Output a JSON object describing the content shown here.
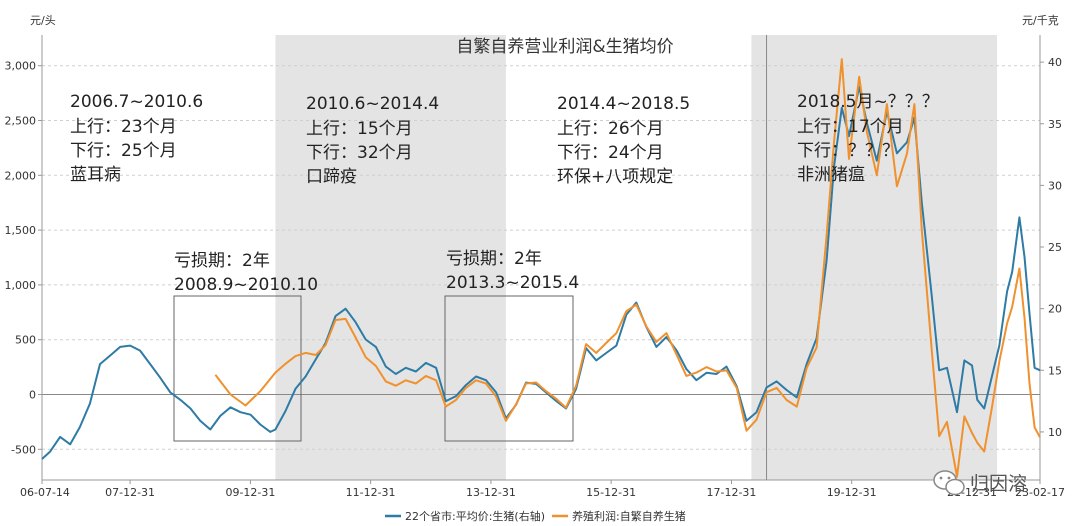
{
  "chart_data": {
    "type": "line",
    "title": "自繁自养营业利润&生猪均价",
    "y_left_unit": "元/头",
    "y_right_unit": "元/千克",
    "y_left_ticks": [
      "-500",
      "0",
      "500",
      "1,000",
      "1,500",
      "2,000",
      "2,500",
      "3,000"
    ],
    "y_left_lim": [
      -780,
      3280
    ],
    "y_right_ticks": [
      "10",
      "15",
      "20",
      "25",
      "30",
      "35",
      "40"
    ],
    "y_right_lim": [
      6.1,
      42.2
    ],
    "x_ticks": [
      "06-07-14",
      "07-12-31",
      "09-12-31",
      "11-12-31",
      "13-12-31",
      "15-12-31",
      "17-12-31",
      "19-12-31",
      "21-12-31",
      "23-02-17"
    ],
    "x_range": [
      "2006-07-14",
      "2023-02-17"
    ],
    "grid": true,
    "legend_position": "bottom",
    "shaded_periods": [
      [
        "2010-06-01",
        "2014-04-01"
      ],
      [
        "2018-05-01",
        "2022-06-01"
      ]
    ],
    "vertical_marker": "2018-08-01",
    "series": [
      {
        "name": "22个省市:平均价:生猪(右轴)",
        "axis": "right",
        "color": "#2e7ba5",
        "points": [
          [
            "2006-07-14",
            7.8
          ],
          [
            "2006-09-01",
            8.4
          ],
          [
            "2006-11-01",
            9.6
          ],
          [
            "2007-01-01",
            9.0
          ],
          [
            "2007-03-01",
            10.4
          ],
          [
            "2007-05-01",
            12.3
          ],
          [
            "2007-07-01",
            15.5
          ],
          [
            "2007-09-01",
            16.2
          ],
          [
            "2007-11-01",
            16.9
          ],
          [
            "2008-01-01",
            17.0
          ],
          [
            "2008-03-01",
            16.6
          ],
          [
            "2008-05-01",
            15.5
          ],
          [
            "2008-07-01",
            14.4
          ],
          [
            "2008-09-01",
            13.2
          ],
          [
            "2008-11-01",
            12.6
          ],
          [
            "2009-01-01",
            11.9
          ],
          [
            "2009-03-01",
            10.9
          ],
          [
            "2009-05-01",
            10.2
          ],
          [
            "2009-07-01",
            11.3
          ],
          [
            "2009-09-01",
            12.0
          ],
          [
            "2009-11-01",
            11.6
          ],
          [
            "2010-01-01",
            11.4
          ],
          [
            "2010-03-01",
            10.6
          ],
          [
            "2010-05-01",
            10.0
          ],
          [
            "2010-06-01",
            10.2
          ],
          [
            "2010-08-01",
            11.7
          ],
          [
            "2010-10-01",
            13.5
          ],
          [
            "2010-12-01",
            14.5
          ],
          [
            "2011-02-01",
            15.9
          ],
          [
            "2011-04-01",
            17.2
          ],
          [
            "2011-06-01",
            19.4
          ],
          [
            "2011-08-01",
            20.0
          ],
          [
            "2011-10-01",
            18.9
          ],
          [
            "2011-12-01",
            17.5
          ],
          [
            "2012-02-01",
            16.9
          ],
          [
            "2012-04-01",
            15.3
          ],
          [
            "2012-06-01",
            14.7
          ],
          [
            "2012-08-01",
            15.2
          ],
          [
            "2012-10-01",
            14.9
          ],
          [
            "2012-12-01",
            15.6
          ],
          [
            "2013-02-01",
            15.2
          ],
          [
            "2013-04-01",
            12.5
          ],
          [
            "2013-06-01",
            12.9
          ],
          [
            "2013-08-01",
            13.8
          ],
          [
            "2013-10-01",
            14.5
          ],
          [
            "2013-12-01",
            14.2
          ],
          [
            "2014-02-01",
            13.2
          ],
          [
            "2014-04-01",
            11.1
          ],
          [
            "2014-06-01",
            12.2
          ],
          [
            "2014-08-01",
            14.0
          ],
          [
            "2014-10-01",
            13.9
          ],
          [
            "2014-12-01",
            13.2
          ],
          [
            "2015-02-01",
            12.5
          ],
          [
            "2015-04-01",
            11.9
          ],
          [
            "2015-06-01",
            13.5
          ],
          [
            "2015-08-01",
            16.8
          ],
          [
            "2015-10-01",
            15.8
          ],
          [
            "2015-12-01",
            16.4
          ],
          [
            "2016-02-01",
            17.0
          ],
          [
            "2016-04-01",
            19.5
          ],
          [
            "2016-06-01",
            20.5
          ],
          [
            "2016-08-01",
            18.5
          ],
          [
            "2016-10-01",
            16.9
          ],
          [
            "2016-12-01",
            17.7
          ],
          [
            "2017-02-01",
            16.6
          ],
          [
            "2017-04-01",
            15.1
          ],
          [
            "2017-06-01",
            14.2
          ],
          [
            "2017-08-01",
            14.8
          ],
          [
            "2017-10-01",
            14.7
          ],
          [
            "2017-12-01",
            15.3
          ],
          [
            "2018-02-01",
            13.7
          ],
          [
            "2018-04-01",
            10.9
          ],
          [
            "2018-06-01",
            11.6
          ],
          [
            "2018-08-01",
            13.6
          ],
          [
            "2018-10-01",
            14.1
          ],
          [
            "2018-12-01",
            13.4
          ],
          [
            "2019-02-01",
            12.8
          ],
          [
            "2019-04-01",
            15.5
          ],
          [
            "2019-06-01",
            17.6
          ],
          [
            "2019-08-01",
            23.9
          ],
          [
            "2019-09-15",
            31.5
          ],
          [
            "2019-11-01",
            36.3
          ],
          [
            "2019-12-15",
            34.0
          ],
          [
            "2020-02-15",
            38.0
          ],
          [
            "2020-04-01",
            35.1
          ],
          [
            "2020-06-01",
            32.0
          ],
          [
            "2020-08-01",
            36.0
          ],
          [
            "2020-10-01",
            32.6
          ],
          [
            "2020-12-01",
            33.5
          ],
          [
            "2021-01-15",
            35.5
          ],
          [
            "2021-03-01",
            28.6
          ],
          [
            "2021-05-01",
            21.0
          ],
          [
            "2021-06-15",
            15.0
          ],
          [
            "2021-08-01",
            15.2
          ],
          [
            "2021-10-01",
            11.6
          ],
          [
            "2021-11-15",
            15.8
          ],
          [
            "2021-12-31",
            15.4
          ],
          [
            "2022-02-01",
            12.6
          ],
          [
            "2022-03-15",
            11.9
          ],
          [
            "2022-05-01",
            14.5
          ],
          [
            "2022-06-15",
            17.0
          ],
          [
            "2022-08-01",
            21.4
          ],
          [
            "2022-09-01",
            23.0
          ],
          [
            "2022-10-15",
            27.4
          ],
          [
            "2022-11-15",
            24.2
          ],
          [
            "2022-12-15",
            19.6
          ],
          [
            "2023-01-15",
            15.2
          ],
          [
            "2023-02-17",
            15.0
          ]
        ]
      },
      {
        "name": "养殖利润:自繁自养生猪",
        "axis": "left",
        "color": "#f0912d",
        "points": [
          [
            "2009-06-01",
            180
          ],
          [
            "2009-09-01",
            0
          ],
          [
            "2009-12-01",
            -100
          ],
          [
            "2010-03-01",
            30
          ],
          [
            "2010-06-01",
            200
          ],
          [
            "2010-08-01",
            280
          ],
          [
            "2010-10-01",
            350
          ],
          [
            "2010-12-01",
            380
          ],
          [
            "2011-02-01",
            360
          ],
          [
            "2011-04-01",
            450
          ],
          [
            "2011-06-01",
            680
          ],
          [
            "2011-08-01",
            690
          ],
          [
            "2011-10-01",
            520
          ],
          [
            "2011-12-01",
            340
          ],
          [
            "2012-02-01",
            260
          ],
          [
            "2012-04-01",
            120
          ],
          [
            "2012-06-01",
            80
          ],
          [
            "2012-08-01",
            130
          ],
          [
            "2012-10-01",
            100
          ],
          [
            "2012-12-01",
            170
          ],
          [
            "2013-02-01",
            130
          ],
          [
            "2013-04-01",
            -110
          ],
          [
            "2013-06-01",
            -50
          ],
          [
            "2013-08-01",
            60
          ],
          [
            "2013-10-01",
            130
          ],
          [
            "2013-12-01",
            100
          ],
          [
            "2014-02-01",
            -20
          ],
          [
            "2014-04-01",
            -240
          ],
          [
            "2014-06-01",
            -90
          ],
          [
            "2014-08-01",
            100
          ],
          [
            "2014-10-01",
            110
          ],
          [
            "2014-12-01",
            30
          ],
          [
            "2015-02-01",
            -40
          ],
          [
            "2015-04-01",
            -120
          ],
          [
            "2015-06-01",
            80
          ],
          [
            "2015-08-01",
            460
          ],
          [
            "2015-10-01",
            380
          ],
          [
            "2015-12-01",
            470
          ],
          [
            "2016-02-01",
            560
          ],
          [
            "2016-04-01",
            760
          ],
          [
            "2016-06-01",
            820
          ],
          [
            "2016-08-01",
            620
          ],
          [
            "2016-10-01",
            480
          ],
          [
            "2016-12-01",
            560
          ],
          [
            "2017-02-01",
            360
          ],
          [
            "2017-04-01",
            170
          ],
          [
            "2017-06-01",
            200
          ],
          [
            "2017-08-01",
            250
          ],
          [
            "2017-10-01",
            210
          ],
          [
            "2017-12-01",
            220
          ],
          [
            "2018-02-01",
            60
          ],
          [
            "2018-04-01",
            -330
          ],
          [
            "2018-06-01",
            -230
          ],
          [
            "2018-08-01",
            20
          ],
          [
            "2018-10-01",
            60
          ],
          [
            "2018-12-01",
            -50
          ],
          [
            "2019-02-01",
            -110
          ],
          [
            "2019-04-01",
            240
          ],
          [
            "2019-06-01",
            430
          ],
          [
            "2019-08-01",
            1450
          ],
          [
            "2019-09-15",
            2300
          ],
          [
            "2019-11-01",
            3060
          ],
          [
            "2019-12-15",
            2150
          ],
          [
            "2020-02-15",
            2900
          ],
          [
            "2020-04-01",
            2400
          ],
          [
            "2020-06-01",
            2000
          ],
          [
            "2020-08-01",
            2650
          ],
          [
            "2020-10-01",
            1900
          ],
          [
            "2020-12-01",
            2200
          ],
          [
            "2021-01-15",
            2650
          ],
          [
            "2021-03-01",
            1500
          ],
          [
            "2021-05-01",
            400
          ],
          [
            "2021-06-15",
            -380
          ],
          [
            "2021-08-01",
            -250
          ],
          [
            "2021-10-01",
            -750
          ],
          [
            "2021-11-15",
            -200
          ],
          [
            "2021-12-31",
            -350
          ],
          [
            "2022-02-01",
            -440
          ],
          [
            "2022-03-15",
            -520
          ],
          [
            "2022-05-01",
            -120
          ],
          [
            "2022-06-15",
            300
          ],
          [
            "2022-08-01",
            650
          ],
          [
            "2022-09-01",
            800
          ],
          [
            "2022-10-15",
            1150
          ],
          [
            "2022-11-15",
            700
          ],
          [
            "2022-12-15",
            100
          ],
          [
            "2023-01-15",
            -300
          ],
          [
            "2023-02-17",
            -390
          ]
        ]
      }
    ],
    "annotations": [
      {
        "lines": [
          "2006.7~2010.6",
          "上行：23个月",
          "下行：25个月",
          "蓝耳病"
        ]
      },
      {
        "lines": [
          "2010.6~2014.4",
          "上行：15个月",
          "下行：32个月",
          "口蹄疫"
        ]
      },
      {
        "lines": [
          "2014.4~2018.5",
          "上行：26个月",
          "下行：24个月",
          "环保+八项规定"
        ]
      },
      {
        "lines": [
          "2018.5月~？？？",
          "上行：17个月",
          "下行：？？？",
          "非洲猪瘟"
        ]
      },
      {
        "lines": [
          "亏损期：2年",
          "2008.9~2010.10"
        ]
      },
      {
        "lines": [
          "亏损期：2年",
          "2013.3~2015.4"
        ]
      }
    ]
  },
  "watermark": "归因溶",
  "watermark_icon": "wechat-icon"
}
